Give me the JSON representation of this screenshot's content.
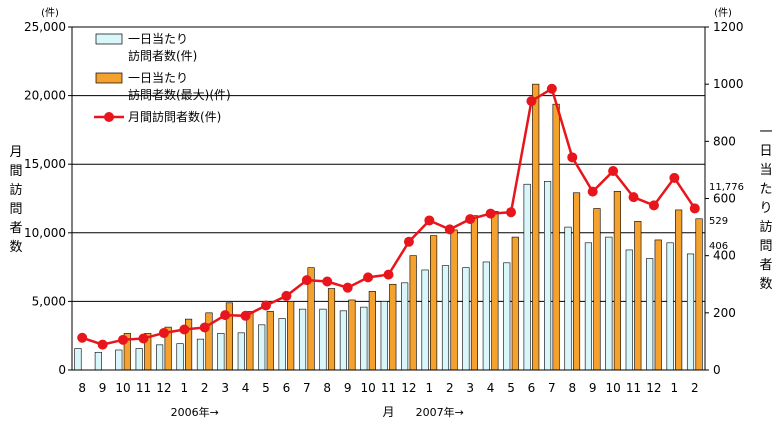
{
  "chart_data": {
    "type": "bar",
    "title": "",
    "categories": [
      "8",
      "9",
      "10",
      "11",
      "12",
      "1",
      "2",
      "3",
      "4",
      "5",
      "6",
      "7",
      "8",
      "9",
      "10",
      "11",
      "12",
      "1",
      "2",
      "3",
      "4",
      "5",
      "6",
      "7",
      "8",
      "9",
      "10",
      "11",
      "12",
      "1",
      "2"
    ],
    "year_markers": [
      {
        "label": "2006年→",
        "at_index": 6
      },
      {
        "label": "2007年→",
        "at_index": 18
      }
    ],
    "xlabel": "月",
    "ylabel_left": "月間訪問者数",
    "ylabel_right": "一日当たり訪問者数",
    "left_unit": "(件)",
    "right_unit": "(件)",
    "ylim_left": [
      0,
      25000
    ],
    "ylim_right": [
      0,
      1200
    ],
    "left_ticks": [
      "0",
      "5,000",
      "10,000",
      "15,000",
      "20,000",
      "25,000"
    ],
    "right_ticks": [
      "0",
      "200",
      "400",
      "600",
      "800",
      "1000",
      "1200"
    ],
    "grid": true,
    "legend_position": "top-left",
    "series": [
      {
        "name": "一日当たり\n訪問者数(件)",
        "kind": "bar",
        "axis": "right",
        "color": "#d9f7fa",
        "values": [
          75,
          62,
          70,
          75,
          88,
          92,
          108,
          128,
          130,
          158,
          180,
          213,
          213,
          207,
          220,
          240,
          305,
          350,
          365,
          358,
          378,
          375,
          650,
          660,
          500,
          445,
          465,
          420,
          390,
          445,
          406
        ]
      },
      {
        "name": "一日当たり\n訪問者数(最大)(件)",
        "kind": "bar",
        "axis": "right",
        "color": "#f5a12e",
        "values": [
          0,
          0,
          128,
          128,
          150,
          178,
          200,
          235,
          205,
          205,
          240,
          358,
          285,
          245,
          275,
          300,
          400,
          470,
          490,
          540,
          555,
          465,
          1000,
          930,
          620,
          565,
          625,
          520,
          455,
          560,
          529
        ]
      },
      {
        "name": "月間訪問者数(件)",
        "kind": "line",
        "axis": "left",
        "color": "#e8161c",
        "values": [
          2350,
          1850,
          2200,
          2300,
          2700,
          2950,
          3100,
          4000,
          3950,
          4700,
          5400,
          6550,
          6450,
          6000,
          6750,
          6950,
          9350,
          10900,
          10250,
          11000,
          11400,
          11500,
          19600,
          20500,
          15500,
          13000,
          14500,
          12600,
          12000,
          14000,
          11776
        ]
      }
    ],
    "annotations": [
      "11,776",
      "529",
      "406"
    ]
  }
}
